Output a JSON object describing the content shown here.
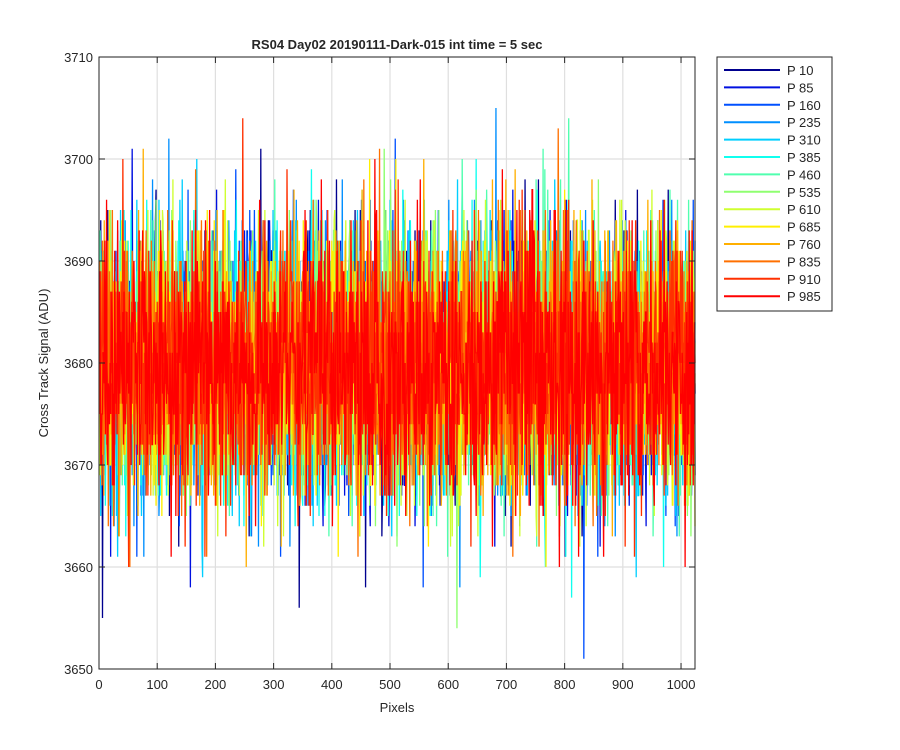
{
  "chart_data": {
    "type": "line",
    "title": "RS04 Day02 20190111-Dark-015 int time = 5 sec",
    "xlabel": "Pixels",
    "ylabel": "Cross Track Signal (ADU)",
    "xlim": [
      0,
      1024
    ],
    "ylim": [
      3650,
      3710
    ],
    "xticks": [
      0,
      100,
      200,
      300,
      400,
      500,
      600,
      700,
      800,
      900,
      1000
    ],
    "yticks": [
      3650,
      3660,
      3670,
      3680,
      3690,
      3700,
      3710
    ],
    "grid": true,
    "legend_position": "outside-top-right",
    "num_points_per_series": 1024,
    "mean_level": 3680,
    "noise_std": 6.5,
    "series": [
      {
        "name": "P 10",
        "color": "#00008f"
      },
      {
        "name": "P 85",
        "color": "#0010e0"
      },
      {
        "name": "P 160",
        "color": "#0050ff"
      },
      {
        "name": "P 235",
        "color": "#008fff"
      },
      {
        "name": "P 310",
        "color": "#00cfff"
      },
      {
        "name": "P 385",
        "color": "#10ffef"
      },
      {
        "name": "P 460",
        "color": "#50ffaf"
      },
      {
        "name": "P 535",
        "color": "#8fff70"
      },
      {
        "name": "P 610",
        "color": "#cfff30"
      },
      {
        "name": "P 685",
        "color": "#ffef00"
      },
      {
        "name": "P 760",
        "color": "#ffaf00"
      },
      {
        "name": "P 835",
        "color": "#ff7000"
      },
      {
        "name": "P 910",
        "color": "#ff3000"
      },
      {
        "name": "P 985",
        "color": "#ff0000"
      }
    ]
  }
}
